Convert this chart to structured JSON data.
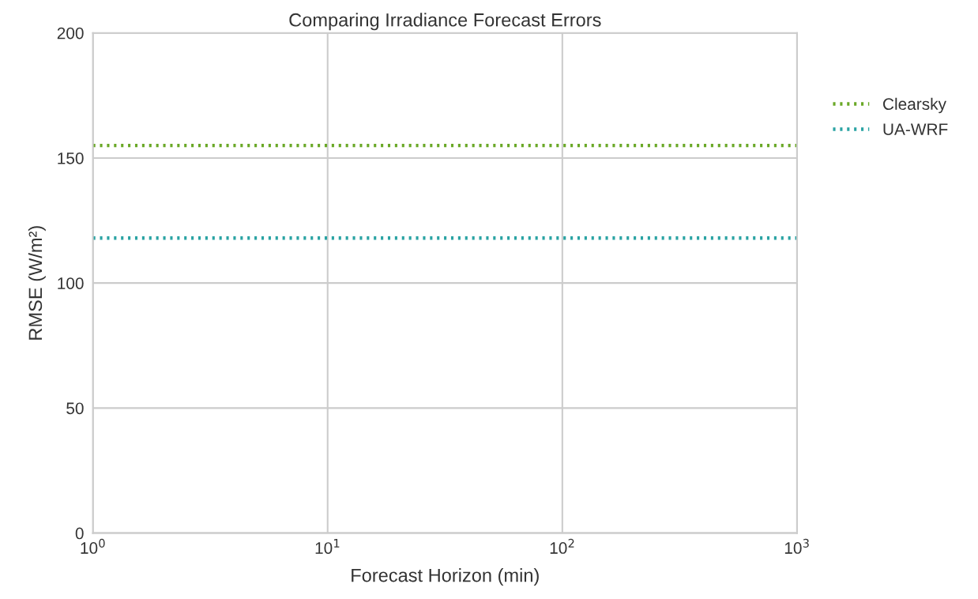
{
  "chart_data": {
    "type": "line",
    "title": "Comparing Irradiance Forecast Errors",
    "xlabel": "Forecast Horizon (min)",
    "ylabel": "RMSE (W/m²)",
    "x": [
      1,
      1000
    ],
    "series": [
      {
        "name": "Clearsky",
        "color": "#6aa827",
        "values": [
          155,
          155
        ]
      },
      {
        "name": "UA-WRF",
        "color": "#2aa3a3",
        "values": [
          118,
          118
        ]
      }
    ],
    "log": "x",
    "xlim": [
      1,
      1000
    ],
    "xticks": [
      {
        "value": 1,
        "label": "10$^{0}$"
      },
      {
        "value": 10,
        "label": "10$^{1}$"
      },
      {
        "value": 100,
        "label": "10$^{2}$"
      },
      {
        "value": 1000,
        "label": "10$^{3}$"
      }
    ],
    "ylim": [
      0,
      200
    ],
    "yticks": [
      0,
      50,
      100,
      150,
      200
    ],
    "grid": true,
    "legend": "right",
    "line_style": "dotted",
    "marker": "none"
  }
}
